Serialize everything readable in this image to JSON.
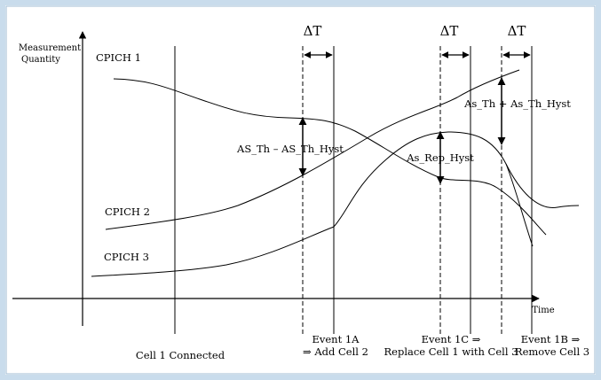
{
  "diagram": {
    "y_axis_label_line1": "Measurement",
    "y_axis_label_line2": "Quantity",
    "x_axis_label": "Time",
    "delta_label": "ΔT",
    "curves": {
      "cpich1": "CPICH 1",
      "cpich2": "CPICH 2",
      "cpich3": "CPICH 3"
    },
    "annotations": {
      "as_th_minus_hyst": "AS_Th – AS_Th_Hyst",
      "as_rep_hyst": "As_Rep_Hyst",
      "as_th_plus_hyst": "As_Th + As_Th_Hyst"
    },
    "events": {
      "cell1_connected": "Cell 1 Connected",
      "event1a_line1": "Event 1A",
      "event1a_line2": "⇒ Add Cell 2",
      "event1c_line1": "Event 1C ⇒",
      "event1c_line2": "Replace Cell 1 with Cell 3",
      "event1b_line1": "Event 1B ⇒",
      "event1b_line2": "Remove Cell 3"
    }
  },
  "colors": {
    "frame_border": "#c9dcec",
    "frame_fill": "#ffffff",
    "ink": "#000000"
  }
}
